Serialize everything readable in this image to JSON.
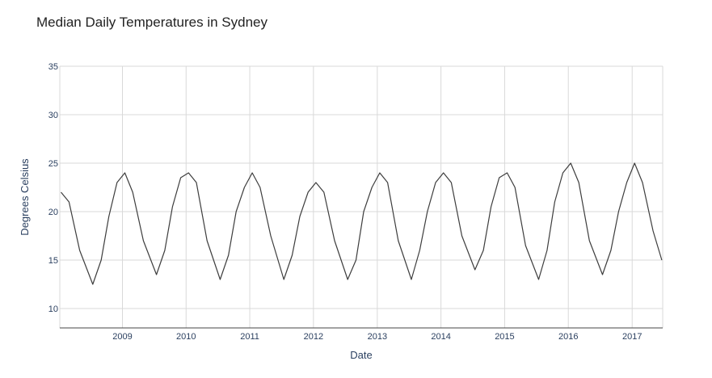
{
  "chart_data": {
    "type": "line",
    "title": "Median Daily Temperatures in Sydney",
    "xlabel": "Date",
    "ylabel": "Degrees Celsius",
    "xlim": [
      "2008-01-08",
      "2017-06-25"
    ],
    "ylim": [
      8,
      35
    ],
    "x_ticks": [
      "2009",
      "2010",
      "2011",
      "2012",
      "2013",
      "2014",
      "2015",
      "2016",
      "2017"
    ],
    "y_ticks": [
      10,
      15,
      20,
      25,
      30,
      35
    ],
    "grid": true,
    "line_color": "#3d3d3d",
    "series": [
      {
        "x": [
          "2008-01-15",
          "2008-03-01",
          "2008-05-01",
          "2008-07-15",
          "2008-09-01",
          "2008-10-15",
          "2008-12-01",
          "2009-01-15",
          "2009-03-01",
          "2009-05-01",
          "2009-07-15",
          "2009-09-01",
          "2009-10-15",
          "2009-12-01",
          "2010-01-15",
          "2010-03-01",
          "2010-05-01",
          "2010-07-15",
          "2010-09-01",
          "2010-10-15",
          "2010-12-01",
          "2011-01-15",
          "2011-03-01",
          "2011-05-01",
          "2011-07-15",
          "2011-09-01",
          "2011-10-15",
          "2011-12-01",
          "2012-01-15",
          "2012-03-01",
          "2012-05-01",
          "2012-07-15",
          "2012-09-01",
          "2012-10-15",
          "2012-12-01",
          "2013-01-15",
          "2013-03-01",
          "2013-05-01",
          "2013-07-15",
          "2013-09-01",
          "2013-10-15",
          "2013-12-01",
          "2014-01-15",
          "2014-03-01",
          "2014-05-01",
          "2014-07-15",
          "2014-09-01",
          "2014-10-15",
          "2014-12-01",
          "2015-01-15",
          "2015-03-01",
          "2015-05-01",
          "2015-07-15",
          "2015-09-01",
          "2015-10-15",
          "2015-12-01",
          "2016-01-15",
          "2016-03-01",
          "2016-05-01",
          "2016-07-15",
          "2016-09-01",
          "2016-10-15",
          "2016-12-01",
          "2017-01-15",
          "2017-03-01",
          "2017-05-01",
          "2017-06-20"
        ],
        "y": [
          22,
          21,
          16,
          12.5,
          15,
          19.5,
          23,
          24,
          22,
          17,
          13.5,
          16,
          20.5,
          23.5,
          24,
          23,
          17,
          13,
          15.5,
          20,
          22.5,
          24,
          22.5,
          17.5,
          13,
          15.5,
          19.5,
          22,
          23,
          22,
          17,
          13,
          15,
          20,
          22.5,
          24,
          23,
          17,
          13,
          16,
          20,
          23,
          24,
          23,
          17.5,
          14,
          16,
          20.5,
          23.5,
          24,
          22.5,
          16.5,
          13,
          16,
          21,
          24,
          25,
          23,
          17,
          13.5,
          16,
          20,
          23,
          25,
          23,
          18,
          15
        ]
      }
    ]
  }
}
